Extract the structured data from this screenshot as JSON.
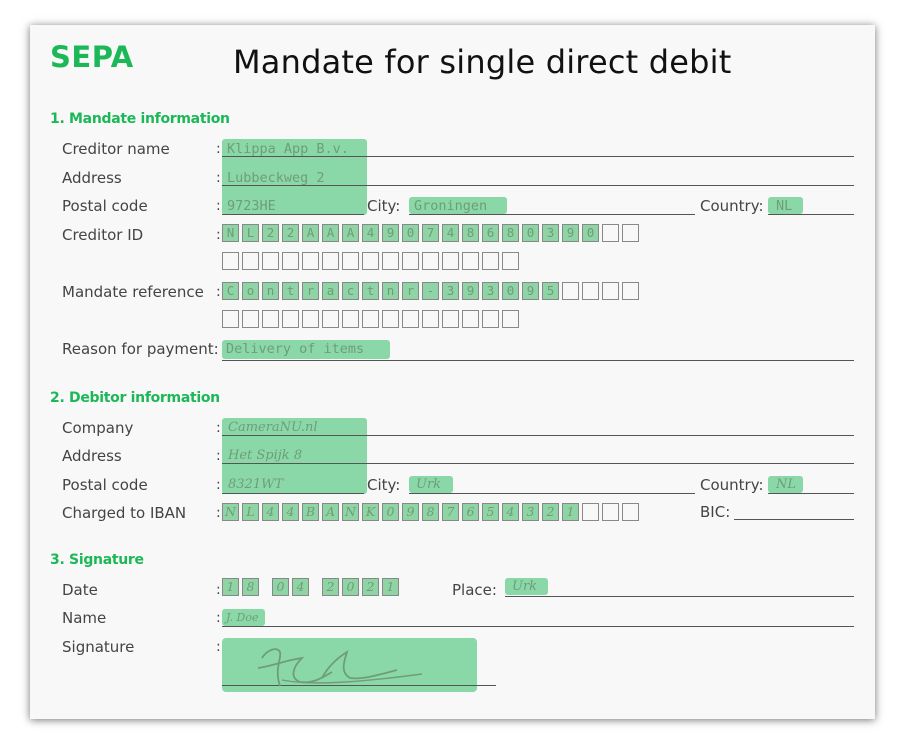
{
  "header": {
    "brand": "SEPA",
    "title": "Mandate for single direct debit"
  },
  "sections": {
    "mandate": "1. Mandate information",
    "debtor": "2. Debitor information",
    "signature": "3. Signature"
  },
  "mandate": {
    "creditor_name_label": "Creditor name",
    "creditor_name": "Klippa App B.v.",
    "address_label": "Address",
    "address": "Lubbeckweg 2",
    "postal_code_label": "Postal code",
    "postal_code": "9723HE",
    "city_label": "City:",
    "city": "Groningen",
    "country_label": "Country:",
    "country": "NL",
    "creditor_id_label": "Creditor ID",
    "creditor_id_chars": [
      "N",
      "L",
      "2",
      "2",
      "A",
      "A",
      "A",
      "4",
      "9",
      "0",
      "7",
      "4",
      "8",
      "6",
      "8",
      "0",
      "3",
      "9",
      "0",
      "",
      ""
    ],
    "mandate_reference_label": "Mandate reference",
    "mandate_reference_chars": [
      "C",
      "o",
      "n",
      "t",
      "r",
      "a",
      "c",
      "t",
      "n",
      "r",
      "-",
      "3",
      "9",
      "3",
      "0",
      "9",
      "5",
      "",
      "",
      "",
      ""
    ],
    "reason_label": "Reason for payment:",
    "reason": "Delivery of items"
  },
  "debtor": {
    "company_label": "Company",
    "company": "CameraNU.nl",
    "address_label": "Address",
    "address": "Het Spijk 8",
    "postal_code_label": "Postal code",
    "postal_code": "8321WT",
    "city_label": "City:",
    "city": "Urk",
    "country_label": "Country:",
    "country": "NL",
    "iban_label": "Charged to IBAN",
    "iban_chars": [
      "N",
      "L",
      "4",
      "4",
      "B",
      "A",
      "N",
      "K",
      "0",
      "9",
      "8",
      "7",
      "6",
      "5",
      "4",
      "3",
      "2",
      "1",
      "",
      "",
      ""
    ],
    "bic_label": "BIC:"
  },
  "signature": {
    "date_label": "Date",
    "date_chars": [
      "1",
      "8",
      "",
      "0",
      "4",
      "",
      "2",
      "0",
      "2",
      "1"
    ],
    "place_label": "Place:",
    "place": "Urk",
    "name_label": "Name",
    "name": "J. Doe",
    "signature_label": "Signature"
  },
  "colors": {
    "accent": "#1cb857",
    "highlight": "#8fd4a4",
    "filled_text": "#6f9d78"
  }
}
